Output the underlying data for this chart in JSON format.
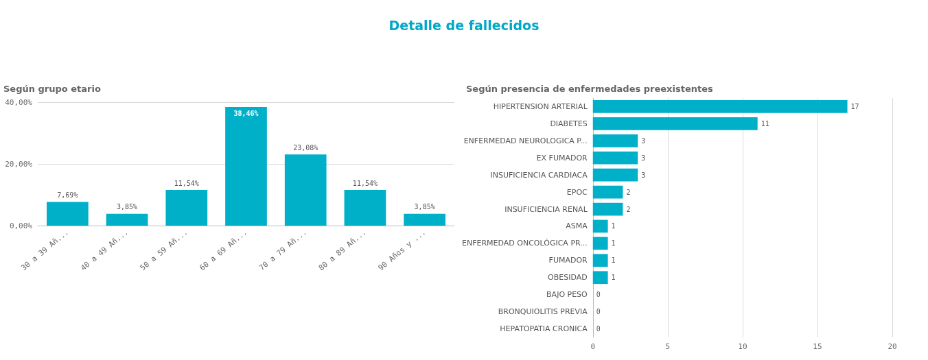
{
  "chart_data": [
    {
      "type": "bar",
      "title": "Detalle de fallecidos",
      "subtitle": "Según grupo etario",
      "categories": [
        "30 a 39 Añ...",
        "40 a 49 Añ...",
        "50 a 59 Añ...",
        "60 a 69 Añ...",
        "70 a 79 Añ...",
        "80 a 89 Añ...",
        "90 Años y ..."
      ],
      "values": [
        7.69,
        3.85,
        11.54,
        38.46,
        23.08,
        11.54,
        3.85
      ],
      "value_labels": [
        "7,69%",
        "3,85%",
        "11,54%",
        "38,46%",
        "23,08%",
        "11,54%",
        "3,85%"
      ],
      "color": "#00afc8",
      "ylim": [
        0,
        40
      ],
      "yticks": [
        {
          "value": 0,
          "label": "0,00%"
        },
        {
          "value": 20,
          "label": "20,00%"
        },
        {
          "value": 40,
          "label": "40,00%"
        }
      ],
      "grid": "y"
    },
    {
      "type": "bar",
      "orientation": "horizontal",
      "title": "Según presencia de enfermedades preexistentes",
      "categories": [
        "HIPERTENSION ARTERIAL",
        "DIABETES",
        "ENFERMEDAD NEUROLOGICA P...",
        "EX FUMADOR",
        "INSUFICIENCIA CARDIACA",
        "EPOC",
        "INSUFICIENCIA RENAL",
        "ASMA",
        "ENFERMEDAD ONCOLÓGICA PR...",
        "FUMADOR",
        "OBESIDAD",
        "BAJO PESO",
        "BRONQUIOLITIS PREVIA",
        "HEPATOPATIA CRONICA"
      ],
      "values": [
        17,
        11,
        3,
        3,
        3,
        2,
        2,
        1,
        1,
        1,
        1,
        0,
        0,
        0
      ],
      "color": "#00afc8",
      "xlim": [
        0,
        20
      ],
      "xticks": [
        0,
        5,
        10,
        15,
        20
      ],
      "grid": "x",
      "data_labels": true
    }
  ]
}
